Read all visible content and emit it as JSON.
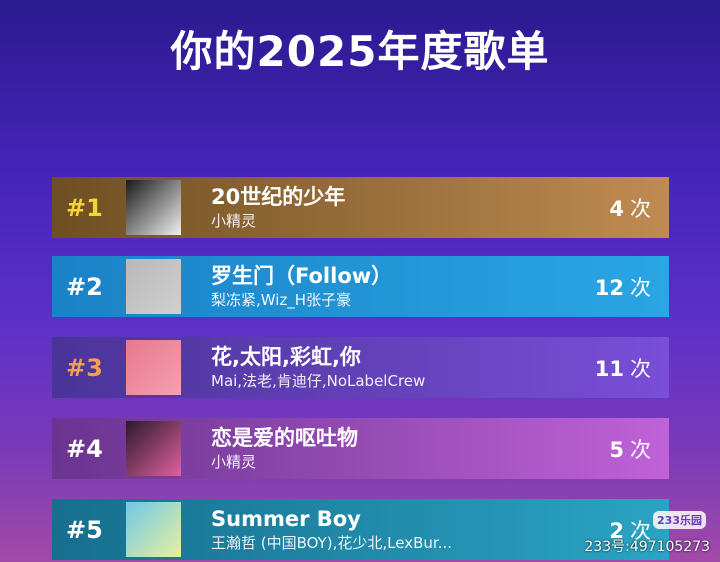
{
  "header": {
    "title": "你的2025年度歌单"
  },
  "songs": [
    {
      "rank": "#1",
      "title": "20世纪的少年",
      "artist": "小精灵",
      "count": "4",
      "unit": "次",
      "colors": [
        "#6e4f22",
        "#c08b52"
      ],
      "rank_color": "#f5d33a",
      "art": [
        "#1a1a1a",
        "#f0f0f0"
      ]
    },
    {
      "rank": "#2",
      "title": "罗生门（Follow）",
      "artist": "梨冻紧,Wiz_H张子豪",
      "count": "12",
      "unit": "次",
      "colors": [
        "#1a82c6",
        "#2aa6e4"
      ],
      "rank_color": "#ffffff",
      "art": [
        "#b8b8b8",
        "#d0d0d0"
      ]
    },
    {
      "rank": "#3",
      "title": "花,太阳,彩虹,你",
      "artist": "Mai,法老,肯迪仔,NoLabelCrew",
      "count": "11",
      "unit": "次",
      "colors": [
        "#4a3498",
        "#7a4ed8"
      ],
      "rank_color": "#f0a050",
      "art": [
        "#e87890",
        "#f4a0b0"
      ]
    },
    {
      "rank": "#4",
      "title": "恋是爱的呕吐物",
      "artist": "小精灵",
      "count": "5",
      "unit": "次",
      "colors": [
        "#6a3490",
        "#c062d8"
      ],
      "rank_color": "#ffffff",
      "art": [
        "#2a1a2a",
        "#e060a0"
      ]
    },
    {
      "rank": "#5",
      "title": "Summer Boy",
      "artist": "王瀚哲 (中国BOY),花少北,LexBur...",
      "count": "2",
      "unit": "次",
      "colors": [
        "#176e8e",
        "#2aa4c4"
      ],
      "rank_color": "#ffffff",
      "art": [
        "#70c8e8",
        "#e8f0a0"
      ]
    }
  ],
  "watermark": {
    "logo": "233乐园",
    "id": "233号:497105273"
  }
}
